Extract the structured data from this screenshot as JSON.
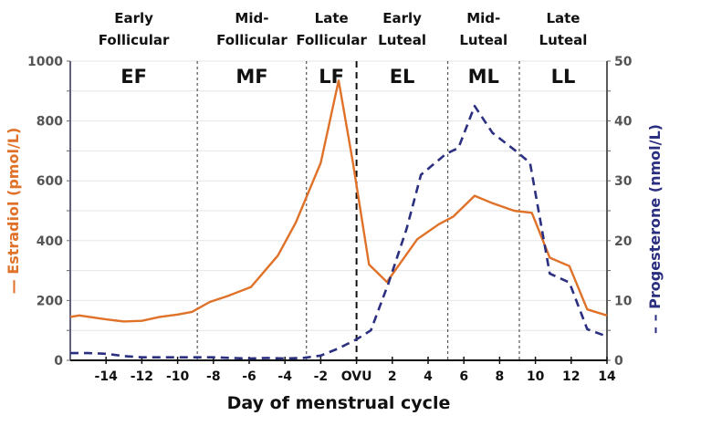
{
  "chart_data": {
    "type": "line",
    "title": "",
    "xlabel": "Day of menstrual cycle",
    "ylabel_left": "Estradiol (pmol/L)",
    "ylabel_right": "Progesterone (nmol/L)",
    "xlim": [
      -16,
      14
    ],
    "ylim_left": [
      0,
      1000
    ],
    "ylim_right": [
      0,
      50
    ],
    "grid": true,
    "x_ticks": [
      {
        "value": -14,
        "label": "-14"
      },
      {
        "value": -12,
        "label": "-12"
      },
      {
        "value": -10,
        "label": "-10"
      },
      {
        "value": -8,
        "label": "-8"
      },
      {
        "value": -6,
        "label": "-6"
      },
      {
        "value": -4,
        "label": "-4"
      },
      {
        "value": -2,
        "label": "-2"
      },
      {
        "value": 0,
        "label": "OVU"
      },
      {
        "value": 2,
        "label": "2"
      },
      {
        "value": 4,
        "label": "4"
      },
      {
        "value": 6,
        "label": "6"
      },
      {
        "value": 8,
        "label": "8"
      },
      {
        "value": 10,
        "label": "10"
      },
      {
        "value": 12,
        "label": "12"
      },
      {
        "value": 14,
        "label": "14"
      }
    ],
    "y_ticks_left": [
      "0",
      "200",
      "400",
      "600",
      "800",
      "1000"
    ],
    "y_ticks_right": [
      "0",
      "10",
      "20",
      "30",
      "40",
      "50"
    ],
    "phases": [
      {
        "name_line1": "Early",
        "name_line2": "Follicular",
        "abbr": "EF",
        "start": -16,
        "end": -8.9
      },
      {
        "name_line1": "Mid-",
        "name_line2": "Follicular",
        "abbr": "MF",
        "start": -8.9,
        "end": -2.8
      },
      {
        "name_line1": "Late",
        "name_line2": "Follicular",
        "abbr": "LF",
        "start": -2.8,
        "end": 0
      },
      {
        "name_line1": "Early",
        "name_line2": "Luteal",
        "abbr": "EL",
        "start": 0,
        "end": 5.1
      },
      {
        "name_line1": "Mid-",
        "name_line2": "Luteal",
        "abbr": "ML",
        "start": 5.1,
        "end": 9.1
      },
      {
        "name_line1": "Late",
        "name_line2": "Luteal",
        "abbr": "LL",
        "start": 9.1,
        "end": 14
      }
    ],
    "ovulation_day": 0,
    "series": [
      {
        "name": "Estradiol",
        "axis": "left",
        "color": "#e07128",
        "style": "solid",
        "x": [
          -16,
          -15.5,
          -14,
          -13,
          -12,
          -11,
          -10,
          -9.2,
          -8.2,
          -7.2,
          -5.9,
          -4.4,
          -3.4,
          -2,
          -1,
          -0.2,
          0.7,
          1.7,
          3.4,
          4.6,
          5.4,
          6.6,
          7.6,
          8.8,
          9.8,
          10.8,
          11.9,
          12.9,
          14
        ],
        "values": [
          145,
          150,
          137,
          130,
          132,
          145,
          153,
          162,
          195,
          215,
          245,
          350,
          460,
          660,
          935,
          660,
          320,
          262,
          405,
          455,
          480,
          550,
          525,
          500,
          493,
          343,
          315,
          170,
          150
        ]
      },
      {
        "name": "Progesterone",
        "axis": "right",
        "color": "#2b2f7f",
        "style": "dashed",
        "x": [
          -16,
          -15,
          -14,
          -13,
          -12,
          -11,
          -10,
          -9,
          -8,
          -7,
          -6,
          -5,
          -4,
          -3,
          -2,
          -1,
          0,
          0.8,
          1.8,
          2.8,
          3.6,
          5,
          5.7,
          6.6,
          7.6,
          8.9,
          9.7,
          10.8,
          11.9,
          12.9,
          14
        ],
        "values": [
          1.2,
          1.2,
          1.1,
          0.7,
          0.5,
          0.5,
          0.5,
          0.5,
          0.5,
          0.4,
          0.3,
          0.4,
          0.3,
          0.4,
          0.8,
          2,
          3.5,
          5,
          13,
          22,
          31,
          34.5,
          35.5,
          42.5,
          38,
          35,
          33,
          14.5,
          13,
          5.2,
          4
        ]
      }
    ]
  }
}
